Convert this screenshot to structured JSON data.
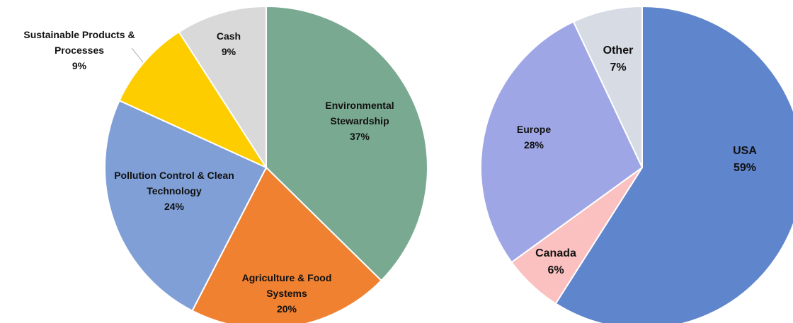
{
  "chart_data": [
    {
      "type": "pie",
      "title": "",
      "slices": [
        {
          "label_lines": [
            "Environmental",
            "Stewardship"
          ],
          "percent_label": "37%",
          "value": 37,
          "color": "#7aa991"
        },
        {
          "label_lines": [
            "Agriculture & Food",
            "Systems"
          ],
          "percent_label": "20%",
          "value": 20,
          "color": "#ef8130"
        },
        {
          "label_lines": [
            "Pollution Control & Clean",
            "Technology"
          ],
          "percent_label": "24%",
          "value": 24,
          "color": "#7f9fd6"
        },
        {
          "label_lines": [
            "Sustainable Products &",
            "Processes"
          ],
          "percent_label": "9%",
          "value": 9,
          "color": "#fecd00"
        },
        {
          "label_lines": [
            "Cash"
          ],
          "percent_label": "9%",
          "value": 9,
          "color": "#d9d9d9"
        }
      ]
    },
    {
      "type": "pie",
      "title": "",
      "slices": [
        {
          "label_lines": [
            "USA"
          ],
          "percent_label": "59%",
          "value": 59,
          "color": "#5f85cd"
        },
        {
          "label_lines": [
            "Canada"
          ],
          "percent_label": "6%",
          "value": 6,
          "color": "#fbc0c0"
        },
        {
          "label_lines": [
            "Europe"
          ],
          "percent_label": "28%",
          "value": 28,
          "color": "#9ea6e6"
        },
        {
          "label_lines": [
            "Other"
          ],
          "percent_label": "7%",
          "value": 7,
          "color": "#d6dbe4"
        }
      ]
    }
  ]
}
